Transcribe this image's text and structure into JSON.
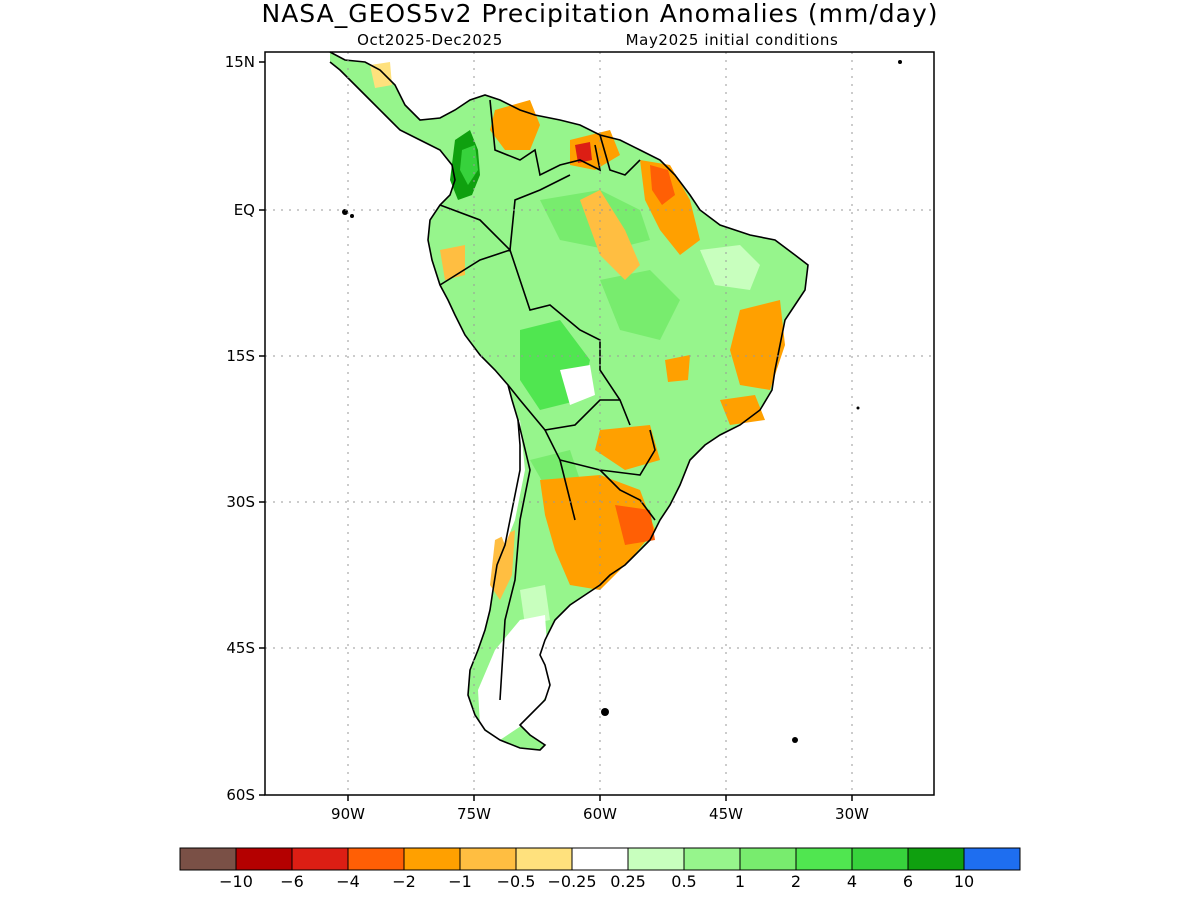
{
  "title": "NASA_GEOS5v2 Precipitation Anomalies (mm/day)",
  "subtitle_left": "Oct2025-Dec2025",
  "subtitle_right": "May2025 initial conditions",
  "lat_ticks": [
    "15N",
    "EQ",
    "15S",
    "30S",
    "45S",
    "60S"
  ],
  "lon_ticks": [
    "90W",
    "75W",
    "60W",
    "45W",
    "30W"
  ],
  "colorbar": {
    "colors": [
      "#7a5046",
      "#b40000",
      "#dc1e14",
      "#ff5f05",
      "#ffa000",
      "#ffbe41",
      "#ffe17d",
      "#ffffff",
      "#c8ffbe",
      "#96f58c",
      "#78ec6e",
      "#50e650",
      "#37d23c",
      "#0fa00f",
      "#1e6ef0"
    ],
    "labels": [
      "-10",
      "-6",
      "-4",
      "-2",
      "-1",
      "-0.5",
      "-0.25",
      "0.25",
      "0.5",
      "1",
      "2",
      "4",
      "6",
      "10"
    ]
  },
  "land_color": "#96f58c",
  "coast_color": "#000000"
}
